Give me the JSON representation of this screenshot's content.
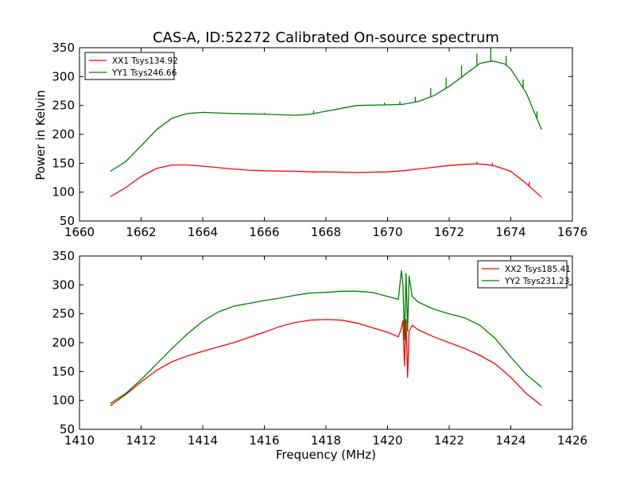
{
  "title": "CAS-A, ID:52272 Calibrated On-source spectrum",
  "colors": {
    "xx": "#ff0000",
    "yy": "#008000",
    "axes": "#000000",
    "background": "#ffffff"
  },
  "chart_data": [
    {
      "type": "line",
      "xlim": [
        1660,
        1676
      ],
      "ylim": [
        50,
        350
      ],
      "xticks": [
        1660,
        1662,
        1664,
        1666,
        1668,
        1670,
        1672,
        1674,
        1676
      ],
      "yticks": [
        50,
        100,
        150,
        200,
        250,
        300,
        350
      ],
      "ylabel": "Power in Kelvin",
      "xlabel": "",
      "legend_position": "top-left",
      "series": [
        {
          "name": "XX1 Tsys134.92",
          "color": "#ff0000",
          "x": [
            1661.0,
            1661.5,
            1662.0,
            1662.5,
            1663.0,
            1663.5,
            1664.0,
            1665.0,
            1665.5,
            1666.0,
            1667.0,
            1667.6,
            1668.0,
            1669.0,
            1670.0,
            1670.5,
            1671.0,
            1671.5,
            1672.0,
            1672.5,
            1672.9,
            1673.2,
            1673.5,
            1674.0,
            1674.5,
            1675.0
          ],
          "y": [
            92,
            108,
            127,
            141,
            147,
            147,
            145,
            140,
            138,
            137,
            136,
            135,
            135,
            134,
            135,
            137,
            140,
            143,
            146,
            148,
            149,
            148,
            145,
            136,
            115,
            91
          ],
          "spikes": [
            {
              "x": 1667.6,
              "y": 133
            },
            {
              "x": 1671.9,
              "y": 144
            },
            {
              "x": 1672.4,
              "y": 148
            },
            {
              "x": 1672.9,
              "y": 153
            },
            {
              "x": 1673.4,
              "y": 151
            },
            {
              "x": 1674.6,
              "y": 118
            }
          ]
        },
        {
          "name": "YY1 Tsys246.66",
          "color": "#008000",
          "x": [
            1661.0,
            1661.5,
            1662.0,
            1662.5,
            1663.0,
            1663.5,
            1664.0,
            1664.5,
            1665.0,
            1666.0,
            1667.0,
            1667.5,
            1668.0,
            1668.5,
            1669.0,
            1670.0,
            1670.5,
            1671.0,
            1671.5,
            1672.0,
            1672.5,
            1673.0,
            1673.4,
            1673.8,
            1674.0,
            1674.5,
            1675.0
          ],
          "y": [
            136,
            153,
            180,
            208,
            228,
            236,
            238,
            237,
            236,
            235,
            233,
            235,
            240,
            245,
            250,
            251,
            252,
            257,
            267,
            283,
            303,
            323,
            327,
            322,
            313,
            272,
            208
          ],
          "spikes": [
            {
              "x": 1666.0,
              "y": 237
            },
            {
              "x": 1667.6,
              "y": 241
            },
            {
              "x": 1669.9,
              "y": 255
            },
            {
              "x": 1670.4,
              "y": 257
            },
            {
              "x": 1670.9,
              "y": 265
            },
            {
              "x": 1671.4,
              "y": 280
            },
            {
              "x": 1671.9,
              "y": 298
            },
            {
              "x": 1672.4,
              "y": 319
            },
            {
              "x": 1672.9,
              "y": 340
            },
            {
              "x": 1673.35,
              "y": 349
            },
            {
              "x": 1673.85,
              "y": 336
            },
            {
              "x": 1674.4,
              "y": 295
            },
            {
              "x": 1674.85,
              "y": 240
            }
          ]
        }
      ]
    },
    {
      "type": "line",
      "xlim": [
        1410,
        1426
      ],
      "ylim": [
        50,
        350
      ],
      "xticks": [
        1410,
        1412,
        1414,
        1416,
        1418,
        1420,
        1422,
        1424,
        1426
      ],
      "yticks": [
        50,
        100,
        150,
        200,
        250,
        300,
        350
      ],
      "xlabel": "Frequency (MHz)",
      "ylabel": "",
      "legend_position": "top-right",
      "series": [
        {
          "name": "XX2 Tsys185.41",
          "color": "#ff0000",
          "x": [
            1411.0,
            1411.5,
            1412.0,
            1412.5,
            1413.0,
            1413.5,
            1414.0,
            1415.0,
            1416.0,
            1416.5,
            1417.0,
            1417.5,
            1418.0,
            1418.5,
            1419.0,
            1419.5,
            1420.0,
            1420.35,
            1420.45,
            1420.5,
            1420.55,
            1420.6,
            1420.65,
            1420.7,
            1420.8,
            1421.0,
            1421.5,
            1422.0,
            1422.5,
            1423.0,
            1423.5,
            1424.0,
            1424.5,
            1425.0
          ],
          "y": [
            91,
            110,
            132,
            152,
            167,
            177,
            185,
            200,
            218,
            228,
            235,
            239,
            240,
            239,
            234,
            226,
            218,
            210,
            225,
            238,
            160,
            240,
            140,
            220,
            230,
            222,
            210,
            200,
            190,
            178,
            163,
            140,
            112,
            91
          ]
        },
        {
          "name": "YY2 Tsys231.23",
          "color": "#008000",
          "x": [
            1411.0,
            1411.5,
            1412.0,
            1412.5,
            1413.0,
            1413.5,
            1414.0,
            1414.5,
            1415.0,
            1415.5,
            1416.0,
            1416.5,
            1417.0,
            1417.5,
            1418.0,
            1418.5,
            1419.0,
            1419.5,
            1420.0,
            1420.35,
            1420.45,
            1420.5,
            1420.55,
            1420.6,
            1420.65,
            1420.7,
            1420.8,
            1421.0,
            1421.5,
            1422.0,
            1422.5,
            1423.0,
            1423.5,
            1424.0,
            1424.5,
            1425.0
          ],
          "y": [
            95,
            112,
            136,
            163,
            190,
            215,
            237,
            253,
            263,
            268,
            273,
            277,
            282,
            286,
            287,
            289,
            289,
            287,
            280,
            275,
            325,
            300,
            205,
            320,
            220,
            315,
            280,
            270,
            258,
            250,
            243,
            230,
            207,
            175,
            145,
            123
          ]
        }
      ]
    }
  ]
}
